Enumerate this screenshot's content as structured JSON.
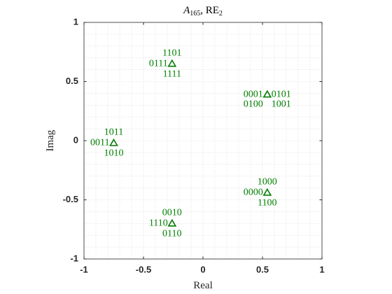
{
  "chart_data": {
    "type": "scatter",
    "title_parts": [
      "A",
      "165",
      ", RE",
      "2"
    ],
    "x_label": "Real",
    "y_label": "Imag",
    "x": [
      -0.26,
      0.54,
      -0.75,
      0.54,
      -0.26
    ],
    "values": [
      0.65,
      0.39,
      -0.02,
      -0.44,
      -0.7
    ],
    "color": "#007a00",
    "label_color": "#008000",
    "marker": "triangle",
    "point_labels": [
      {
        "above": "1101",
        "left": "0111",
        "below": "1111"
      },
      {
        "left": "0001",
        "right": "0101",
        "below-left": "0100",
        "below-right": "1001"
      },
      {
        "above": "1011",
        "left": "0011",
        "below": "1010"
      },
      {
        "above": "1000",
        "left": "0000",
        "below": "1100"
      },
      {
        "above": "0010",
        "left": "1110",
        "below": "0110"
      }
    ],
    "xlim": [
      -1,
      1
    ],
    "ylim": [
      -1,
      1
    ],
    "xticks": [
      -1,
      -0.5,
      0,
      0.5,
      1
    ],
    "yticks": [
      -1,
      -0.5,
      0,
      0.5,
      1
    ],
    "grid": true,
    "minor_grid": true
  }
}
